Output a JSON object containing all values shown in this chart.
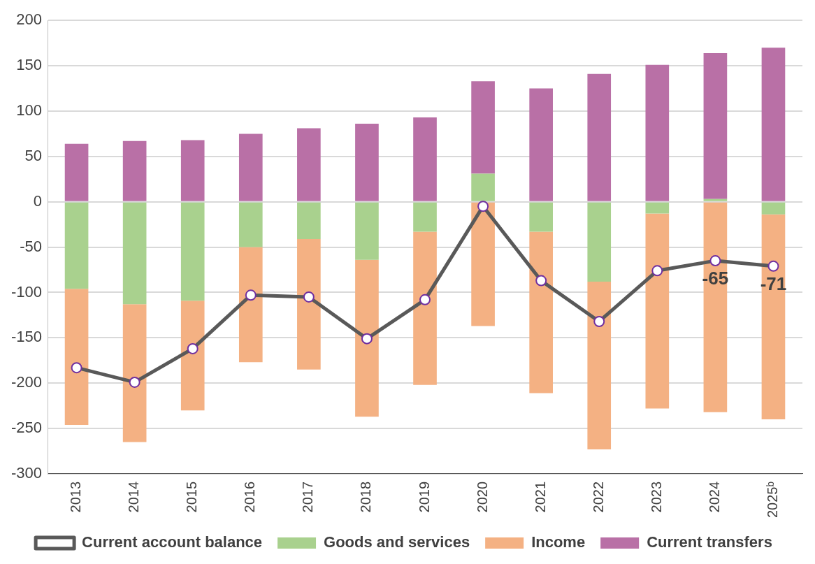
{
  "chart_data": {
    "type": "bar",
    "stacked": true,
    "categories": [
      "2013",
      "2014",
      "2015",
      "2016",
      "2017",
      "2018",
      "2019",
      "2020",
      "2021",
      "2022",
      "2023",
      "2024",
      "2025ᵇ"
    ],
    "series": [
      {
        "name": "Goods and services",
        "color": "#a9d18e",
        "values": [
          -96,
          -113,
          -109,
          -50,
          -41,
          -64,
          -33,
          31,
          -33,
          -88,
          -13,
          3,
          -14
        ]
      },
      {
        "name": "Income",
        "color": "#f4b183",
        "values": [
          -150,
          -152,
          -121,
          -127,
          -144,
          -173,
          -169,
          -137,
          -178,
          -185,
          -215,
          -232,
          -226
        ]
      },
      {
        "name": "Current transfers",
        "color": "#b970a6",
        "values": [
          64,
          67,
          68,
          75,
          81,
          86,
          93,
          102,
          125,
          141,
          151,
          161,
          170
        ]
      },
      {
        "name": "Current account balance",
        "type": "line",
        "color": "#595959",
        "marker": "circle",
        "line_style": "solid",
        "values": [
          -183,
          -199,
          -162,
          -103,
          -105,
          -151,
          -108,
          -5,
          -87,
          -132,
          -76,
          -65,
          -71
        ],
        "value_labels": [
          null,
          null,
          null,
          null,
          null,
          null,
          null,
          null,
          null,
          null,
          null,
          "-65",
          "-71"
        ]
      }
    ],
    "ylim": [
      -300,
      200
    ],
    "yticks": [
      -300,
      -250,
      -200,
      -150,
      -100,
      -50,
      0,
      50,
      100,
      150,
      200
    ],
    "grid": "y",
    "legend": "bottom"
  }
}
